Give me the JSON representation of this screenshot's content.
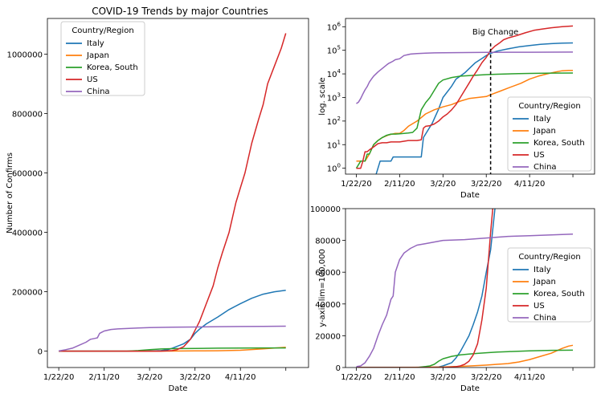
{
  "figure_title": "COVID-19 Trends by major Countries",
  "colors": {
    "Italy": "#1f77b4",
    "Japan": "#ff7f0e",
    "Korea, South": "#2ca02c",
    "US": "#d62728",
    "China": "#9467bd"
  },
  "chart_data": [
    {
      "type": "line",
      "title": "COVID-19 Trends by major Countries",
      "xlabel": "Date",
      "ylabel": "Number of Confirms",
      "x_ticks": [
        "1/22/20",
        "2/11/20",
        "3/2/20",
        "3/22/20",
        "4/11/20"
      ],
      "ylim": [
        -55000,
        1120000
      ],
      "y_ticks": [
        0,
        200000,
        400000,
        600000,
        800000,
        1000000
      ],
      "y_scale": "linear",
      "legend": {
        "title": "Country/Region",
        "placement": "top-left"
      },
      "series": [
        {
          "name": "Italy",
          "x": [
            0,
            38,
            45,
            48,
            50,
            55,
            58,
            60,
            62,
            65,
            70,
            75,
            80,
            85,
            90,
            95,
            100
          ],
          "y": [
            0,
            0,
            2000,
            5000,
            10000,
            25000,
            40000,
            60000,
            74000,
            92000,
            115000,
            140000,
            160000,
            178000,
            192000,
            200000,
            205000
          ]
        },
        {
          "name": "Japan",
          "x": [
            0,
            20,
            40,
            50,
            60,
            70,
            80,
            90,
            100
          ],
          "y": [
            0,
            0,
            200,
            400,
            800,
            1500,
            3000,
            8000,
            13000
          ]
        },
        {
          "name": "Korea, South",
          "x": [
            0,
            28,
            30,
            35,
            40,
            45,
            50,
            60,
            70,
            80,
            90,
            100
          ],
          "y": [
            0,
            0,
            100,
            2000,
            5000,
            7500,
            8400,
            9300,
            10000,
            10500,
            10800,
            10900
          ]
        },
        {
          "name": "US",
          "x": [
            0,
            40,
            45,
            50,
            52,
            55,
            58,
            60,
            62,
            65,
            68,
            70,
            72,
            75,
            78,
            80,
            82,
            85,
            88,
            90,
            92,
            95,
            98,
            100
          ],
          "y": [
            0,
            0,
            200,
            2000,
            5000,
            15000,
            40000,
            70000,
            100000,
            160000,
            220000,
            280000,
            330000,
            400000,
            500000,
            550000,
            600000,
            700000,
            780000,
            830000,
            900000,
            960000,
            1020000,
            1070000
          ]
        },
        {
          "name": "China",
          "x": [
            0,
            3,
            6,
            9,
            12,
            14,
            16,
            17,
            18,
            20,
            23,
            26,
            29,
            32,
            35,
            40,
            50,
            60,
            70,
            80,
            90,
            100
          ],
          "y": [
            600,
            5000,
            10000,
            20000,
            30000,
            40000,
            43000,
            45000,
            60000,
            68000,
            73000,
            75000,
            76000,
            77000,
            78000,
            79500,
            80500,
            81500,
            82500,
            83000,
            83500,
            84000
          ]
        }
      ]
    },
    {
      "type": "line",
      "title": "",
      "xlabel": "Date",
      "ylabel": "log. scale",
      "x_ticks": [
        "1/22/20",
        "2/11/20",
        "3/2/20",
        "3/22/20",
        "4/11/20"
      ],
      "y_scale": "log",
      "y_ticks": [
        "10^0",
        "10^1",
        "10^2",
        "10^3",
        "10^4",
        "10^5",
        "10^6"
      ],
      "annotation": {
        "text": "Big Change",
        "x": 62,
        "style": "dashed vertical line"
      },
      "legend": {
        "title": "Country/Region",
        "placement": "lower-right"
      },
      "series": [
        {
          "name": "Italy",
          "x": [
            9,
            11,
            16,
            17,
            22,
            30,
            31,
            35,
            38,
            40,
            44,
            46,
            50,
            53,
            55,
            58,
            60,
            62,
            65,
            70,
            75,
            80,
            85,
            90,
            95,
            100
          ],
          "y": [
            0.5,
            2,
            2,
            3,
            3,
            3,
            20,
            79,
            322,
            1000,
            3000,
            6000,
            11000,
            20000,
            30000,
            45000,
            60000,
            74000,
            92000,
            115000,
            140000,
            160000,
            178000,
            192000,
            200000,
            205000
          ]
        },
        {
          "name": "Japan",
          "x": [
            0,
            2,
            4,
            6,
            8,
            10,
            12,
            15,
            18,
            20,
            22,
            24,
            28,
            32,
            36,
            40,
            44,
            48,
            52,
            56,
            60,
            62,
            66,
            70,
            76,
            80,
            84,
            88,
            92,
            95,
            98,
            100
          ],
          "y": [
            2,
            2,
            2,
            4,
            10,
            15,
            20,
            26,
            30,
            30,
            40,
            60,
            100,
            200,
            300,
            400,
            500,
            700,
            900,
            1000,
            1100,
            1300,
            1800,
            2500,
            4000,
            6000,
            8000,
            10000,
            12000,
            13500,
            14000,
            14000
          ]
        },
        {
          "name": "Korea, South",
          "x": [
            0,
            2,
            4,
            5,
            6,
            8,
            10,
            12,
            14,
            16,
            18,
            20,
            22,
            24,
            26,
            28,
            30,
            32,
            34,
            36,
            38,
            40,
            44,
            48,
            52,
            56,
            60,
            65,
            70,
            75,
            80,
            90,
            100
          ],
          "y": [
            1,
            2,
            2,
            4,
            4,
            10,
            15,
            20,
            25,
            28,
            28,
            29,
            30,
            31,
            33,
            50,
            300,
            600,
            1000,
            2000,
            4000,
            5500,
            7000,
            8000,
            8500,
            8900,
            9300,
            9700,
            10000,
            10300,
            10500,
            10800,
            10900
          ]
        },
        {
          "name": "US",
          "x": [
            0,
            2,
            3,
            4,
            5,
            6,
            8,
            10,
            12,
            14,
            16,
            18,
            20,
            22,
            24,
            26,
            28,
            30,
            31,
            32,
            34,
            36,
            38,
            40,
            42,
            44,
            46,
            48,
            50,
            52,
            54,
            56,
            58,
            60,
            62,
            64,
            66,
            68,
            70,
            74,
            78,
            82,
            86,
            90,
            95,
            100
          ],
          "y": [
            1,
            1,
            2,
            5,
            5,
            6,
            8,
            11,
            12,
            12,
            13,
            13,
            13,
            14,
            15,
            15,
            15,
            16,
            50,
            60,
            64,
            75,
            100,
            150,
            200,
            300,
            500,
            1000,
            2000,
            4000,
            8000,
            15000,
            30000,
            50000,
            100000,
            150000,
            200000,
            280000,
            330000,
            420000,
            550000,
            700000,
            800000,
            900000,
            1000000,
            1070000
          ]
        },
        {
          "name": "China",
          "x": [
            0,
            1,
            2,
            3,
            4,
            5,
            6,
            7,
            8,
            10,
            12,
            14,
            15,
            16,
            17,
            18,
            20,
            22,
            25,
            28,
            32,
            36,
            40,
            50,
            60,
            70,
            80,
            90,
            100
          ],
          "y": [
            548,
            640,
            900,
            1400,
            2100,
            2900,
            4500,
            6000,
            8000,
            12000,
            17000,
            24000,
            28000,
            31000,
            35000,
            40000,
            44000,
            60000,
            69000,
            73000,
            76000,
            78000,
            79000,
            80500,
            81500,
            82500,
            83000,
            83500,
            84000
          ]
        }
      ]
    },
    {
      "type": "line",
      "title": "",
      "xlabel": "Date",
      "ylabel": "y-axis lim=100,000",
      "x_ticks": [
        "1/22/20",
        "2/11/20",
        "3/2/20",
        "3/22/20",
        "4/11/20"
      ],
      "ylim": [
        0,
        100000
      ],
      "y_ticks": [
        0,
        20000,
        40000,
        60000,
        80000,
        100000
      ],
      "y_scale": "linear",
      "legend": {
        "title": "Country/Region",
        "placement": "center-right"
      },
      "series": [
        {
          "name": "Italy",
          "x": [
            0,
            30,
            35,
            38,
            40,
            42,
            44,
            46,
            48,
            50,
            52,
            54,
            56,
            58,
            60,
            62,
            64
          ],
          "y": [
            0,
            0,
            100,
            300,
            1000,
            2000,
            3000,
            6000,
            10000,
            15000,
            20000,
            27000,
            35000,
            45000,
            60000,
            74000,
            100000
          ]
        },
        {
          "name": "Japan",
          "x": [
            0,
            20,
            30,
            40,
            50,
            60,
            65,
            70,
            75,
            80,
            85,
            90,
            95,
            98,
            100
          ],
          "y": [
            0,
            0,
            200,
            300,
            800,
            1500,
            2000,
            2500,
            3500,
            5000,
            7000,
            9000,
            12000,
            13500,
            14000
          ]
        },
        {
          "name": "Korea, South",
          "x": [
            0,
            28,
            30,
            32,
            34,
            36,
            38,
            40,
            44,
            48,
            52,
            56,
            60,
            65,
            70,
            80,
            90,
            100
          ],
          "y": [
            0,
            0,
            300,
            600,
            1000,
            2000,
            4000,
            5500,
            7000,
            8000,
            8500,
            8900,
            9300,
            9700,
            10000,
            10500,
            10800,
            10900
          ]
        },
        {
          "name": "US",
          "x": [
            0,
            40,
            44,
            46,
            48,
            50,
            52,
            54,
            56,
            58,
            60,
            62,
            63
          ],
          "y": [
            0,
            0,
            300,
            500,
            1000,
            2000,
            4000,
            8000,
            15000,
            30000,
            50000,
            85000,
            100000
          ]
        },
        {
          "name": "China",
          "x": [
            0,
            2,
            4,
            5,
            6,
            8,
            10,
            12,
            14,
            15,
            16,
            17,
            18,
            20,
            22,
            25,
            28,
            32,
            36,
            40,
            50,
            60,
            70,
            80,
            90,
            100
          ],
          "y": [
            548,
            1000,
            3000,
            5000,
            7000,
            12000,
            20000,
            27000,
            33000,
            38000,
            43000,
            45000,
            60000,
            68000,
            72000,
            75000,
            77000,
            78000,
            79000,
            80000,
            80500,
            81500,
            82500,
            83000,
            83500,
            84000
          ]
        }
      ]
    }
  ]
}
